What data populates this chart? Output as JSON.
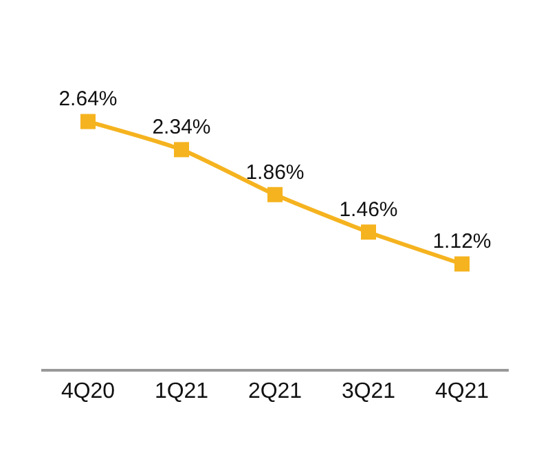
{
  "chart_data": {
    "type": "line",
    "categories": [
      "4Q20",
      "1Q21",
      "2Q21",
      "3Q21",
      "4Q21"
    ],
    "values": [
      2.64,
      2.34,
      1.86,
      1.46,
      1.12
    ],
    "value_labels": [
      "2.64%",
      "2.34%",
      "1.86%",
      "1.46%",
      "1.12%"
    ],
    "color": "#f5b31f",
    "marker": "square",
    "tick_labels": "x"
  }
}
